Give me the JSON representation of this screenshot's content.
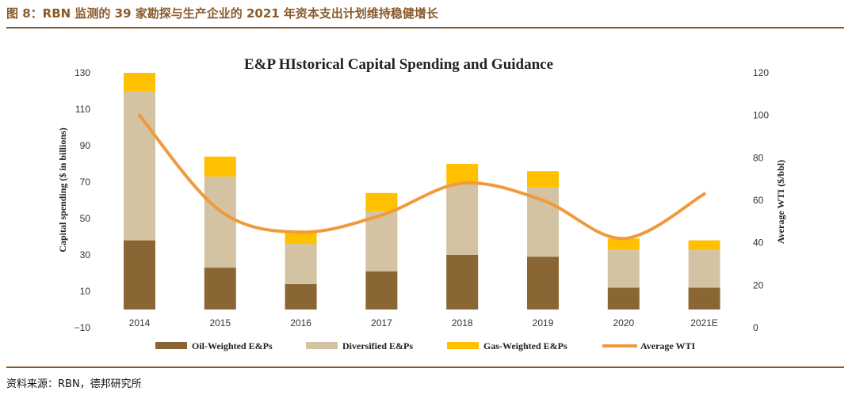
{
  "figure_label": "图 8：RBN 监测的 39 家勘探与生产企业的 2021 年资本支出计划维持稳健增长",
  "source_note": "资料来源：RBN，德邦研究所",
  "colors": {
    "oil": "#8b6635",
    "diversified": "#d4c3a2",
    "gas": "#ffc000",
    "wti": "#f09a3c",
    "header": "#8a5a2b"
  },
  "chart_data": {
    "type": "bar",
    "stacked": true,
    "title": "E&P HIstorical Capital Spending and Guidance",
    "ylabel": "Capital spending ($ in billions)",
    "y2label": "Average WTI ($/bbl)",
    "categories": [
      "2014",
      "2015",
      "2016",
      "2017",
      "2018",
      "2019",
      "2020",
      "2021E"
    ],
    "yticks": [
      -10,
      10,
      30,
      50,
      70,
      90,
      110,
      130
    ],
    "ylim": [
      -10,
      130
    ],
    "y2ticks": [
      0,
      20,
      40,
      60,
      80,
      100,
      120
    ],
    "y2lim": [
      0,
      120
    ],
    "series": [
      {
        "name": "Oil-Weighted E&Ps",
        "values": [
          38,
          23,
          14,
          21,
          30,
          29,
          12,
          12
        ]
      },
      {
        "name": "Diversified E&Ps",
        "values": [
          82,
          50,
          22,
          33,
          39,
          38,
          21,
          21
        ]
      },
      {
        "name": "Gas-Weighted E&Ps",
        "values": [
          10,
          11,
          6,
          10,
          11,
          9,
          6,
          5
        ]
      }
    ],
    "line": {
      "name": "Average WTI",
      "values": [
        100,
        55,
        45,
        53,
        68,
        60,
        42,
        63
      ]
    },
    "legend": [
      "Oil-Weighted E&Ps",
      "Diversified E&Ps",
      "Gas-Weighted E&Ps",
      "Average WTI"
    ],
    "legend_position": "bottom",
    "grid": false
  }
}
